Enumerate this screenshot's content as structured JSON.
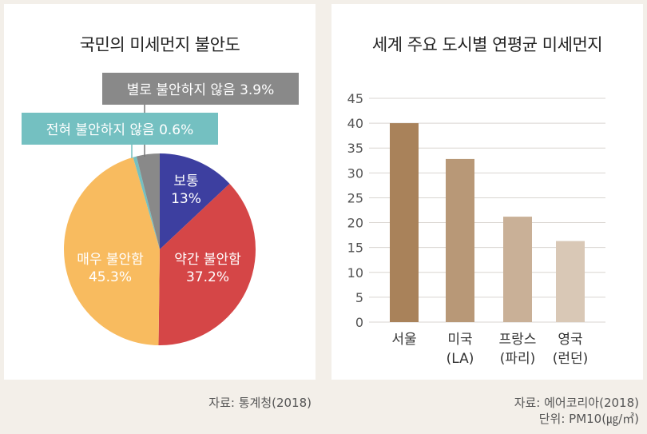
{
  "chart_data": [
    {
      "type": "pie",
      "title": "국민의 미세먼지 불안도",
      "slices": [
        {
          "label": "보통",
          "value": 13,
          "value_label": "13%",
          "color": "#3d3fa0"
        },
        {
          "label": "약간 불안함",
          "value": 37.2,
          "value_label": "37.2%",
          "color": "#d54647"
        },
        {
          "label": "매우 불안함",
          "value": 45.3,
          "value_label": "45.3%",
          "color": "#f8bb5f"
        },
        {
          "label": "전혀 불안하지 않음",
          "value": 0.6,
          "value_label": "0.6%",
          "color": "#74c0c1"
        },
        {
          "label": "별로 불안하지 않음",
          "value": 3.9,
          "value_label": "3.9%",
          "color": "#898989"
        }
      ],
      "callouts": [
        "별로 불안하지 않음 3.9%",
        "전혀 불안하지 않음 0.6%"
      ],
      "source": "자료: 통계청(2018)"
    },
    {
      "type": "bar",
      "title": "세계 주요 도시별 연평균 미세먼지",
      "categories": [
        [
          "서울"
        ],
        [
          "미국",
          "(LA)"
        ],
        [
          "프랑스",
          "(파리)"
        ],
        [
          "영국",
          "(런던)"
        ]
      ],
      "values": [
        40,
        32.8,
        21.2,
        16.3
      ],
      "colors": [
        "#a9825a",
        "#b89877",
        "#c9b097",
        "#d9c8b6"
      ],
      "ylim": [
        0,
        45
      ],
      "yticks": [
        0,
        5,
        10,
        15,
        20,
        25,
        30,
        35,
        40,
        45
      ],
      "grid": true,
      "source": "자료: 에어코리아(2018)",
      "unit": "단위: PM10(㎍/㎥)"
    }
  ]
}
